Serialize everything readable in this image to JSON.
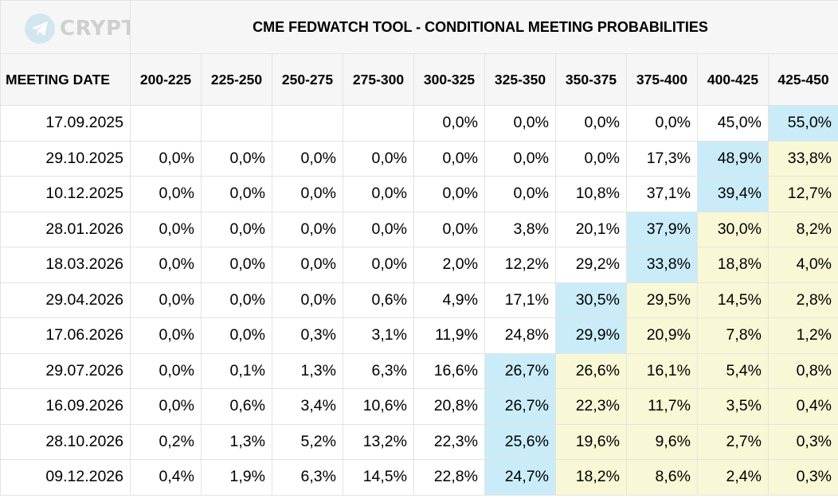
{
  "logo_text": "CRYPTO_HD",
  "title": "CME FEDWATCH TOOL - CONDITIONAL MEETING PROBABILITIES",
  "colors": {
    "highlight_max": "#c9ecf8",
    "highlight_above": "#f8f8d6",
    "header_bg": "#f6f6f6"
  },
  "header": {
    "date_label": "MEETING DATE",
    "ranges": [
      "200-225",
      "225-250",
      "250-275",
      "275-300",
      "300-325",
      "325-350",
      "350-375",
      "375-400",
      "400-425",
      "425-450"
    ]
  },
  "rows": [
    {
      "date": "17.09.2025",
      "values": [
        "",
        "",
        "",
        "",
        "0,0%",
        "0,0%",
        "0,0%",
        "0,0%",
        "45,0%",
        "55,0%"
      ]
    },
    {
      "date": "29.10.2025",
      "values": [
        "0,0%",
        "0,0%",
        "0,0%",
        "0,0%",
        "0,0%",
        "0,0%",
        "0,0%",
        "17,3%",
        "48,9%",
        "33,8%"
      ]
    },
    {
      "date": "10.12.2025",
      "values": [
        "0,0%",
        "0,0%",
        "0,0%",
        "0,0%",
        "0,0%",
        "0,0%",
        "10,8%",
        "37,1%",
        "39,4%",
        "12,7%"
      ]
    },
    {
      "date": "28.01.2026",
      "values": [
        "0,0%",
        "0,0%",
        "0,0%",
        "0,0%",
        "0,0%",
        "3,8%",
        "20,1%",
        "37,9%",
        "30,0%",
        "8,2%"
      ]
    },
    {
      "date": "18.03.2026",
      "values": [
        "0,0%",
        "0,0%",
        "0,0%",
        "0,0%",
        "2,0%",
        "12,2%",
        "29,2%",
        "33,8%",
        "18,8%",
        "4,0%"
      ]
    },
    {
      "date": "29.04.2026",
      "values": [
        "0,0%",
        "0,0%",
        "0,0%",
        "0,6%",
        "4,9%",
        "17,1%",
        "30,5%",
        "29,5%",
        "14,5%",
        "2,8%"
      ]
    },
    {
      "date": "17.06.2026",
      "values": [
        "0,0%",
        "0,0%",
        "0,3%",
        "3,1%",
        "11,9%",
        "24,8%",
        "29,9%",
        "20,9%",
        "7,8%",
        "1,2%"
      ]
    },
    {
      "date": "29.07.2026",
      "values": [
        "0,0%",
        "0,1%",
        "1,3%",
        "6,3%",
        "16,6%",
        "26,7%",
        "26,6%",
        "16,1%",
        "5,4%",
        "0,8%"
      ]
    },
    {
      "date": "16.09.2026",
      "values": [
        "0,0%",
        "0,6%",
        "3,4%",
        "10,6%",
        "20,8%",
        "26,7%",
        "22,3%",
        "11,7%",
        "3,5%",
        "0,4%"
      ]
    },
    {
      "date": "28.10.2026",
      "values": [
        "0,2%",
        "1,3%",
        "5,2%",
        "13,2%",
        "22,3%",
        "25,6%",
        "19,6%",
        "9,6%",
        "2,7%",
        "0,3%"
      ]
    },
    {
      "date": "09.12.2026",
      "values": [
        "0,4%",
        "1,9%",
        "6,3%",
        "14,5%",
        "22,8%",
        "24,7%",
        "18,2%",
        "8,6%",
        "2,4%",
        "0,3%"
      ]
    }
  ],
  "highlight": {
    "max_col": [
      9,
      8,
      8,
      7,
      7,
      6,
      6,
      5,
      5,
      5,
      5
    ],
    "yellow_from": [
      10,
      9,
      9,
      8,
      8,
      7,
      7,
      6,
      6,
      6,
      6
    ]
  }
}
